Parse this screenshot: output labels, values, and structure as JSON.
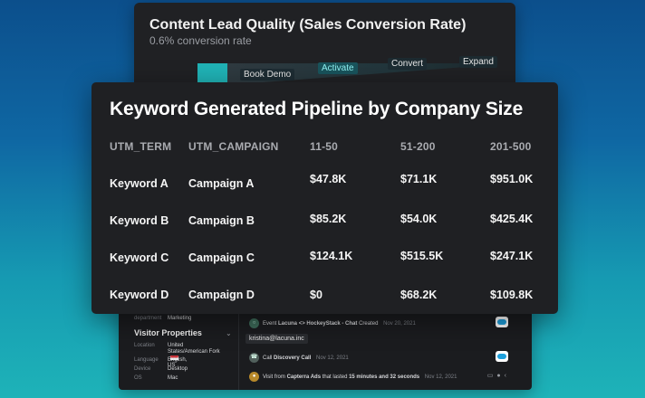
{
  "back_panel": {
    "title": "Content Lead Quality (Sales Conversion Rate)",
    "subtitle": "0.6% conversion rate",
    "funnel_stages": [
      "Book Demo",
      "Activate",
      "Convert",
      "Expand"
    ],
    "colors": {
      "accent": "#20b3b6"
    }
  },
  "main": {
    "title": "Keyword Generated Pipeline by Company Size",
    "columns": [
      "UTM_TERM",
      "UTM_CAMPAIGN",
      "11-50",
      "51-200",
      "201-500"
    ],
    "rows": [
      [
        "Keyword A",
        "Campaign A",
        "$47.8K",
        "$71.1K",
        "$951.0K"
      ],
      [
        "Keyword B",
        "Campaign B",
        "$85.2K",
        "$54.0K",
        "$425.4K"
      ],
      [
        "Keyword C",
        "Campaign C",
        "$124.1K",
        "$515.5K",
        "$247.1K"
      ],
      [
        "Keyword D",
        "Campaign D",
        "$0",
        "$68.2K",
        "$109.8K"
      ]
    ]
  },
  "visitor": {
    "department_label": "department",
    "department_value": "Marketing",
    "section_title": "Visitor Properties",
    "properties": [
      {
        "key": "Location",
        "value": "United States/American Fork"
      },
      {
        "key": "Language",
        "value": "English, US"
      },
      {
        "key": "Device",
        "value": "Desktop"
      },
      {
        "key": "OS",
        "value": "Mac"
      }
    ],
    "email": "kristina@lacuna.inc",
    "events": [
      {
        "prefix": "Event",
        "bold": "Lacuna <> HockeyStack - Chat",
        "suffix": "Created",
        "date": "Nov 20, 2021"
      },
      {
        "prefix": "Call",
        "bold": "Discovery Call",
        "suffix": "",
        "date": "Nov 12, 2021"
      },
      {
        "prefix": "Visit from",
        "bold": "Capterra Ads",
        "suffix": "that lasted",
        "bold2": "15 minutes and 32 seconds",
        "date": "Nov 12, 2021"
      }
    ]
  }
}
